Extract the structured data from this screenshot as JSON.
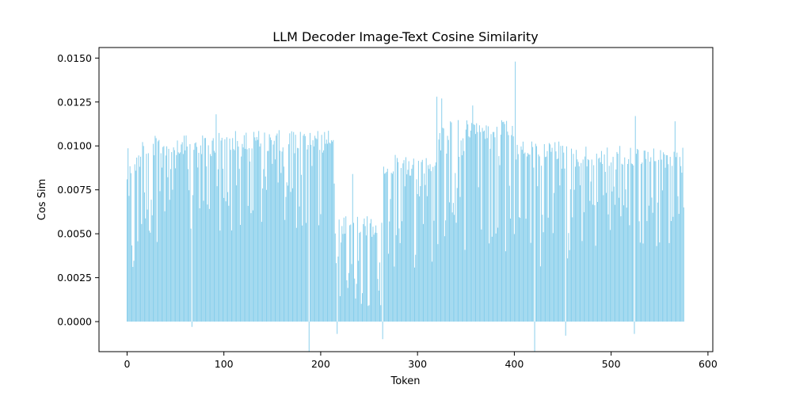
{
  "chart_data": {
    "type": "bar",
    "title": "LLM Decoder Image-Text Cosine Similarity",
    "xlabel": "Token",
    "ylabel": "Cos Sim",
    "xlim": [
      -29,
      605
    ],
    "ylim": [
      -0.00171,
      0.0156
    ],
    "xticks": [
      0,
      100,
      200,
      300,
      400,
      500,
      600
    ],
    "yticks": [
      0.0,
      0.0025,
      0.005,
      0.0075,
      0.01,
      0.0125,
      0.015
    ],
    "ytick_labels": [
      "0.0000",
      "0.0025",
      "0.0050",
      "0.0075",
      "0.0100",
      "0.0125",
      "0.0150"
    ],
    "grid": false,
    "bar_color": "#87ceeb",
    "n_tokens": 576,
    "segments": [
      {
        "x_start": 0,
        "x_end": 15,
        "low": 0.0015,
        "high": 0.0099
      },
      {
        "x_start": 15,
        "x_end": 95,
        "low": 0.0045,
        "high": 0.0106
      },
      {
        "x_start": 95,
        "x_end": 215,
        "low": 0.005,
        "high": 0.0109
      },
      {
        "x_start": 215,
        "x_end": 265,
        "low": 0.0008,
        "high": 0.006
      },
      {
        "x_start": 265,
        "x_end": 320,
        "low": 0.003,
        "high": 0.0095
      },
      {
        "x_start": 320,
        "x_end": 400,
        "low": 0.004,
        "high": 0.0115
      },
      {
        "x_start": 400,
        "x_end": 460,
        "low": 0.003,
        "high": 0.0103
      },
      {
        "x_start": 460,
        "x_end": 576,
        "low": 0.004,
        "high": 0.01
      }
    ],
    "notable_values": [
      {
        "x": 0,
        "y": 0.0081
      },
      {
        "x": 67,
        "y": -0.0003
      },
      {
        "x": 92,
        "y": 0.0118
      },
      {
        "x": 188,
        "y": -0.0017
      },
      {
        "x": 217,
        "y": -0.0007
      },
      {
        "x": 233,
        "y": 0.0084
      },
      {
        "x": 264,
        "y": -0.001
      },
      {
        "x": 320,
        "y": 0.0128
      },
      {
        "x": 325,
        "y": 0.0127
      },
      {
        "x": 357,
        "y": 0.0123
      },
      {
        "x": 401,
        "y": 0.0148
      },
      {
        "x": 421,
        "y": -0.0017
      },
      {
        "x": 453,
        "y": -0.0008
      },
      {
        "x": 524,
        "y": -0.0007
      },
      {
        "x": 525,
        "y": 0.0117
      },
      {
        "x": 566,
        "y": 0.0114
      },
      {
        "x": 575,
        "y": 0.0065
      }
    ]
  }
}
